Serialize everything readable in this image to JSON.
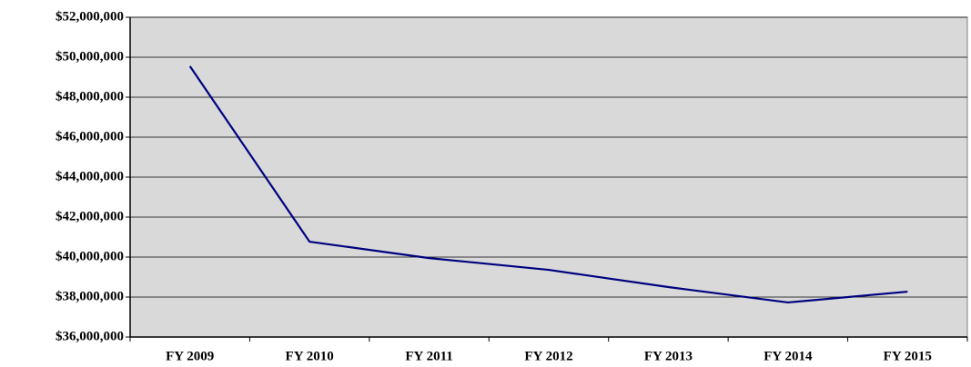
{
  "chart_data": {
    "type": "line",
    "categories": [
      "FY 2009",
      "FY 2010",
      "FY 2011",
      "FY 2012",
      "FY 2013",
      "FY 2014",
      "FY 2015"
    ],
    "series": [
      {
        "color": "#000080",
        "values": [
          49550000,
          40770000,
          39950000,
          39360000,
          38500000,
          37730000,
          38270000
        ]
      }
    ],
    "ylim": [
      36000000,
      52000000
    ],
    "yticks": [
      {
        "value": 36000000,
        "label": "$36,000,000"
      },
      {
        "value": 38000000,
        "label": "$38,000,000"
      },
      {
        "value": 40000000,
        "label": "$40,000,000"
      },
      {
        "value": 42000000,
        "label": "$42,000,000"
      },
      {
        "value": 44000000,
        "label": "$44,000,000"
      },
      {
        "value": 46000000,
        "label": "$46,000,000"
      },
      {
        "value": 48000000,
        "label": "$48,000,000"
      },
      {
        "value": 50000000,
        "label": "$50,000,000"
      },
      {
        "value": 52000000,
        "label": "$52,000,000"
      }
    ],
    "grid": true,
    "background": "#d9d9d9"
  }
}
